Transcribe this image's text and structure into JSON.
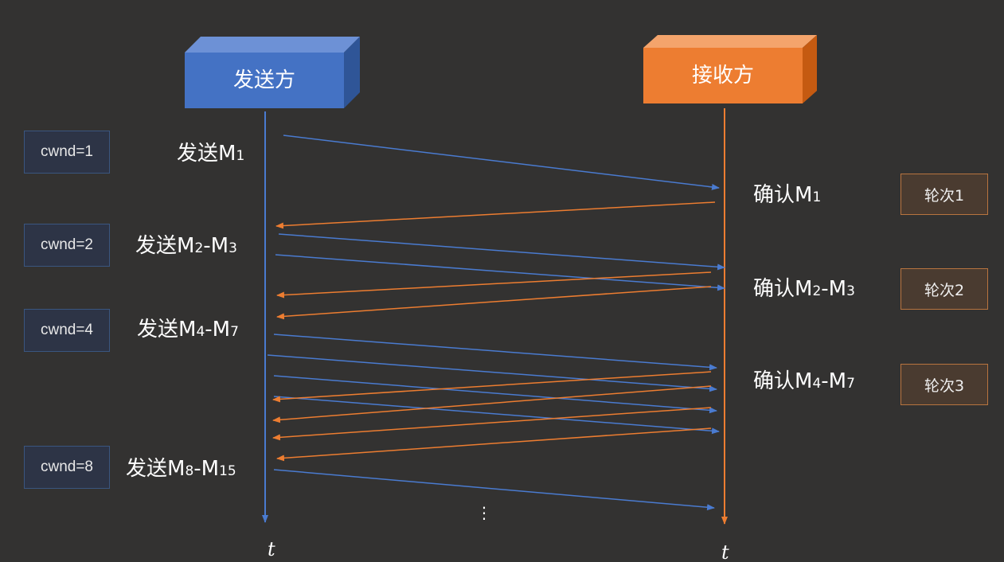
{
  "sender": {
    "label": "发送方",
    "color": "#4472c4"
  },
  "receiver": {
    "label": "接收方",
    "color": "#ed7d31"
  },
  "cwnd": [
    {
      "label": "cwnd=1"
    },
    {
      "label": "cwnd=2"
    },
    {
      "label": "cwnd=4"
    },
    {
      "label": "cwnd=8"
    }
  ],
  "sends": [
    {
      "prefix": "发送M",
      "a": "1",
      "dash": "",
      "m2": "",
      "b": ""
    },
    {
      "prefix": "发送M",
      "a": "2",
      "dash": "-",
      "m2": "M",
      "b": "3"
    },
    {
      "prefix": "发送M",
      "a": "4",
      "dash": "-",
      "m2": "M",
      "b": "7"
    },
    {
      "prefix": "发送M",
      "a": "8",
      "dash": "-",
      "m2": "M",
      "b": "15"
    }
  ],
  "acks": [
    {
      "prefix": "确认M",
      "a": "1",
      "dash": "",
      "m2": "",
      "b": ""
    },
    {
      "prefix": "确认M",
      "a": "2",
      "dash": "-",
      "m2": "M",
      "b": "3"
    },
    {
      "prefix": "确认M",
      "a": "4",
      "dash": "-",
      "m2": "M",
      "b": "7"
    }
  ],
  "rounds": [
    {
      "label": "轮次1"
    },
    {
      "label": "轮次2"
    },
    {
      "label": "轮次3"
    }
  ],
  "axis": {
    "sender_t": "t",
    "receiver_t": "t"
  },
  "ellipsis": "⋮"
}
